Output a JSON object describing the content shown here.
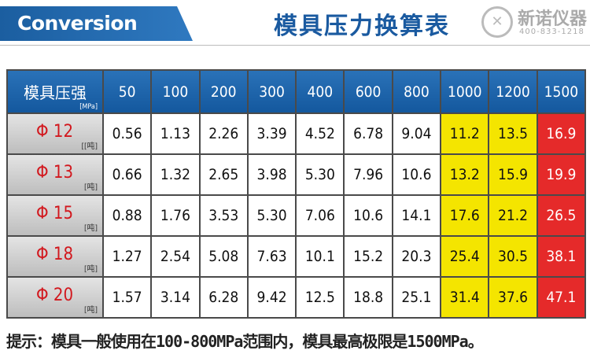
{
  "header": {
    "banner": "Conversion",
    "title": "模具压力换算表",
    "logo_name": "新诺仪器",
    "logo_phone": "400-833-1218"
  },
  "table": {
    "corner": "模具压强",
    "corner_unit": "[MPa]",
    "columns": [
      "50",
      "100",
      "200",
      "300",
      "400",
      "600",
      "800",
      "1000",
      "1200",
      "1500"
    ],
    "rows": [
      {
        "label": "Φ 12",
        "unit": "[[吨]",
        "values": [
          "0.56",
          "1.13",
          "2.26",
          "3.39",
          "4.52",
          "6.78",
          "9.04",
          "11.2",
          "13.5",
          "16.9"
        ]
      },
      {
        "label": "Φ 13",
        "unit": "[吨]",
        "values": [
          "0.66",
          "1.32",
          "2.65",
          "3.98",
          "5.30",
          "7.96",
          "10.6",
          "13.2",
          "15.9",
          "19.9"
        ]
      },
      {
        "label": "Φ 15",
        "unit": "[吨]",
        "values": [
          "0.88",
          "1.76",
          "3.53",
          "5.30",
          "7.06",
          "10.6",
          "14.1",
          "17.6",
          "21.2",
          "26.5"
        ]
      },
      {
        "label": "Φ 18",
        "unit": "[吨]",
        "values": [
          "1.27",
          "2.54",
          "5.08",
          "7.63",
          "10.1",
          "15.2",
          "20.3",
          "25.4",
          "30.5",
          "38.1"
        ]
      },
      {
        "label": "Φ 20",
        "unit": "[吨]",
        "values": [
          "1.57",
          "3.14",
          "6.28",
          "9.42",
          "12.5",
          "18.8",
          "25.1",
          "31.4",
          "37.6",
          "47.1"
        ]
      }
    ]
  },
  "footer": {
    "note": "提示：模具一般使用在100-800MPa范围内，模具最高极限是1500MPa。"
  }
}
